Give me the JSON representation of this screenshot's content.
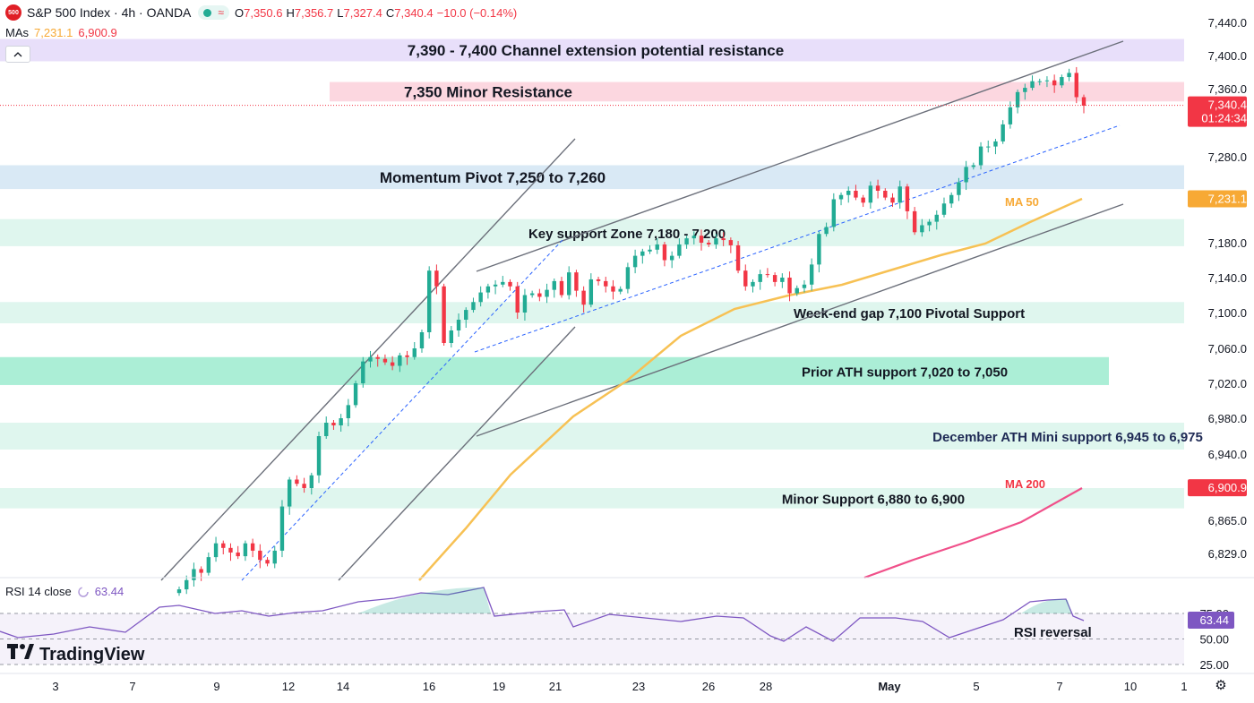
{
  "header": {
    "logo_text": "500",
    "title": "S&P 500 Index · 4h · OANDA",
    "wave_icon": "≈",
    "ohlc": [
      {
        "label": "O",
        "value": "7,350.6"
      },
      {
        "label": "H",
        "value": "7,356.7"
      },
      {
        "label": "L",
        "value": "7,327.4"
      },
      {
        "label": "C",
        "value": "7,340.4"
      },
      {
        "label": "",
        "value": "−10.0 (−0.14%)"
      }
    ]
  },
  "mas": {
    "label": "MAs",
    "ma50_value": "7,231.1",
    "ma200_value": "6,900.9"
  },
  "collapse_icon": "chevron-up-icon",
  "rsi_legend": {
    "label": "RSI 14 close",
    "value": "63.44"
  },
  "brand": {
    "name": "TradingView"
  },
  "colors": {
    "up": "#22ab94",
    "down": "#f23645",
    "ma50": "#f7c154",
    "ma200": "#f0508a",
    "rsi": "#7e57c2",
    "purple_zone": "#e5dcf9",
    "red_zone": "#fcd3dd",
    "blue_zone": "#d5e7f4",
    "green_zone": "#dcf5ec",
    "dark_green_zone": "#a2ecd2",
    "price_tag": "#f23645",
    "ma50_tag": "#f7a935",
    "ma200_tag": "#f23645"
  },
  "chart_data": {
    "type": "candlestick",
    "title": "S&P 500 Index · 4h · OANDA",
    "y_axis": {
      "ticks": [
        6829,
        6865,
        6900,
        6940,
        6980,
        7020,
        7060,
        7100,
        7140,
        7180,
        7220,
        7280,
        7320,
        7360,
        7400,
        7440
      ],
      "tick_labels": [
        "6,829.0",
        "6,865.0",
        "6,900.0",
        "6,940.0",
        "6,980.0",
        "7,020.0",
        "7,060.0",
        "7,100.0",
        "7,140.0",
        "7,180.0",
        "",
        "7,280.0",
        "",
        "7,360.0",
        "7,400.0",
        "7,440.0"
      ]
    },
    "x_axis": {
      "tick_labels": [
        "3",
        "7",
        "9",
        "12",
        "14",
        "16",
        "19",
        "21",
        "23",
        "26",
        "28",
        "May",
        "5",
        "7",
        "10",
        "1"
      ]
    },
    "zones": [
      {
        "label": "7,390 - 7,400 Channel extension potential resistance",
        "low": 7393,
        "high": 7420,
        "color": "purple_zone"
      },
      {
        "label": "7,350 Minor Resistance",
        "low": 7345,
        "high": 7368,
        "color": "red_zone"
      },
      {
        "label": "Momentum Pivot 7,250 to 7,260",
        "low": 7242,
        "high": 7270,
        "color": "blue_zone"
      },
      {
        "label": "Key support Zone 7,180 - 7,200",
        "low": 7176,
        "high": 7207,
        "color": "green_zone"
      },
      {
        "label": "Week-end gap 7,100 Pivotal Support",
        "low": 7088,
        "high": 7112,
        "color": "green_zone"
      },
      {
        "label": "Prior ATH support 7,020 to 7,050",
        "low": 7018,
        "high": 7050,
        "color": "dark_green_zone"
      },
      {
        "label": "December ATH Mini support 6,945 to 6,975",
        "low": 6945,
        "high": 6975,
        "color": "green_zone"
      },
      {
        "label": "Minor Support 6,880 to 6,900",
        "low": 6878,
        "high": 6900,
        "color": "green_zone"
      }
    ],
    "annotations": [
      {
        "text": "MA 50",
        "color": "ma50_tag"
      },
      {
        "text": "MA 200",
        "color": "ma200_tag"
      },
      {
        "text": "RSI reversal",
        "color": "#131722"
      }
    ],
    "price_tags": [
      {
        "label": "7,340.4",
        "sub": "01:24:34",
        "value": 7340.4,
        "color": "price_tag"
      },
      {
        "label": "7,231.1",
        "value": 7231.1,
        "color": "ma50_tag"
      },
      {
        "label": "6,900.9",
        "value": 6900.9,
        "color": "ma200_tag"
      }
    ],
    "current_price": 7340.4,
    "candles_closes": [
      6790,
      6800,
      6812,
      6808,
      6825,
      6840,
      6835,
      6830,
      6826,
      6840,
      6832,
      6822,
      6818,
      6832,
      6880,
      6910,
      6905,
      6900,
      6915,
      6960,
      6975,
      6972,
      6980,
      6995,
      7020,
      7045,
      7050,
      7048,
      7044,
      7040,
      7052,
      7050,
      7060,
      7078,
      7148,
      7130,
      7066,
      7080,
      7092,
      7103,
      7112,
      7123,
      7130,
      7132,
      7135,
      7130,
      7100,
      7120,
      7122,
      7118,
      7126,
      7136,
      7120,
      7146,
      7125,
      7109,
      7138,
      7136,
      7130,
      7124,
      7127,
      7152,
      7165,
      7170,
      7172,
      7178,
      7160,
      7165,
      7178,
      7185,
      7188,
      7180,
      7178,
      7185,
      7183,
      7177,
      7148,
      7130,
      7135,
      7144,
      7143,
      7135,
      7140,
      7122,
      7128,
      7132,
      7155,
      7190,
      7198,
      7230,
      7235,
      7240,
      7232,
      7226,
      7246,
      7240,
      7232,
      7226,
      7245,
      7216,
      7192,
      7200,
      7204,
      7212,
      7225,
      7235,
      7250,
      7268,
      7270,
      7292,
      7292,
      7298,
      7318,
      7338,
      7356,
      7361,
      7369,
      7369,
      7370,
      7364,
      7374,
      7379,
      7350,
      7340
    ],
    "rsi": {
      "levels": [
        75,
        50,
        25
      ],
      "tick_labels": [
        "75.00",
        "50.00",
        "25.00"
      ],
      "current": 63.44
    }
  }
}
